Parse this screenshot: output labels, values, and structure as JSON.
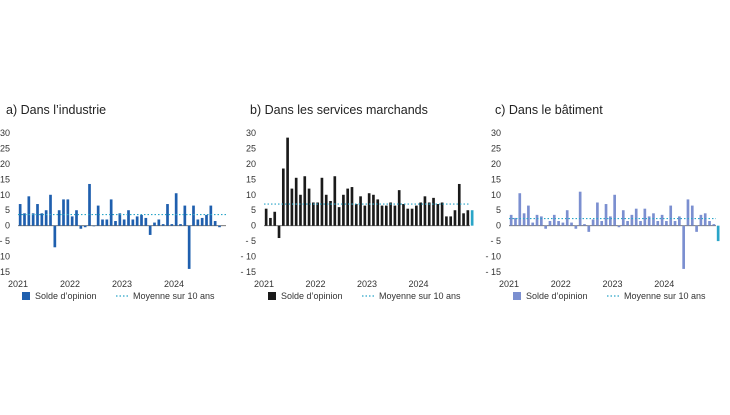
{
  "chart_data": [
    {
      "type": "bar",
      "title": "a)  Dans l’industrie",
      "color": "#1f5fae",
      "x_tick_labels": [
        "2021",
        "2022",
        "2023",
        "2024"
      ],
      "ylim": [
        -15,
        30
      ],
      "y_ticks": [
        "30",
        "25",
        "20",
        "15",
        "10",
        "5",
        "0",
        "- 5",
        "- 10",
        "- 15"
      ],
      "grid": false,
      "reference_line": {
        "name": "Moyenne sur 10 ans",
        "value": 3.6,
        "style": "dotted",
        "color": "#2aa5c8"
      },
      "legend": {
        "bar": "Solde d’opinion",
        "line": "Moyenne sur 10 ans",
        "placement": "bottom"
      },
      "x_start": "2021-01",
      "values": [
        7,
        4,
        9.5,
        4,
        7,
        4,
        5,
        10,
        -7,
        5,
        8.5,
        8.5,
        3,
        5,
        -1,
        -0.5,
        13.5,
        0,
        6.5,
        2,
        2,
        8.5,
        1.5,
        4,
        2,
        5,
        2,
        3,
        3.5,
        2.5,
        -3,
        1,
        2,
        0.5,
        7,
        0.5,
        10.5,
        0.5,
        6.5,
        -14,
        6.5,
        2,
        2.5,
        3.5,
        6.5,
        1.5,
        -0.5
      ]
    },
    {
      "type": "bar",
      "title": "b)  Dans les services marchands",
      "color": "#1a1a1a",
      "x_tick_labels": [
        "2021",
        "2022",
        "2023",
        "2024"
      ],
      "ylim": [
        -15,
        30
      ],
      "y_ticks": [
        "30",
        "25",
        "20",
        "15",
        "10",
        "5",
        "0",
        "- 5",
        "- 10",
        "- 15"
      ],
      "grid": false,
      "reference_line": {
        "name": "Moyenne sur 10 ans",
        "value": 7,
        "style": "dotted",
        "color": "#2aa5c8"
      },
      "legend": {
        "bar": "Solde d’opinion",
        "line": "Moyenne sur 10 ans",
        "placement": "bottom"
      },
      "x_start": "2021-01",
      "last_bar_color": "#2aa5c8",
      "values": [
        5.5,
        2.5,
        4.5,
        -4,
        18.5,
        28.5,
        12,
        15.5,
        10,
        16,
        12,
        7.5,
        7.5,
        15.5,
        10,
        8,
        16,
        6,
        10,
        12,
        12.5,
        7,
        9.5,
        6.5,
        10.5,
        10,
        8.5,
        6.5,
        6.5,
        7.5,
        6.5,
        11.5,
        7,
        5.5,
        5.5,
        6.5,
        7.5,
        9.5,
        7.5,
        9,
        7,
        7.5,
        3,
        3,
        5,
        13.5,
        4,
        5,
        5
      ]
    },
    {
      "type": "bar",
      "title": "c)  Dans le bâtiment",
      "color": "#7b8fd0",
      "x_tick_labels": [
        "2021",
        "2022",
        "2023",
        "2024"
      ],
      "ylim": [
        -15,
        30
      ],
      "y_ticks": [
        "30",
        "25",
        "20",
        "15",
        "10",
        "5",
        "0",
        "- 5",
        "- 10",
        "- 15"
      ],
      "grid": false,
      "reference_line": {
        "name": "Moyenne sur 10 ans",
        "value": 2.3,
        "style": "dotted",
        "color": "#2aa5c8"
      },
      "legend": {
        "bar": "Solde d’opinion",
        "line": "Moyenne sur 10 ans",
        "placement": "bottom"
      },
      "x_start": "2021-01",
      "last_bar_color": "#2aa5c8",
      "values": [
        3.5,
        2.5,
        10.5,
        4,
        6.5,
        1,
        3.5,
        3,
        -1,
        1.5,
        3.5,
        1.5,
        1,
        5,
        1,
        -1,
        11,
        0.5,
        -2,
        2,
        7.5,
        1.5,
        7,
        3,
        10,
        -0.5,
        5,
        1.5,
        3.5,
        5.5,
        1.5,
        5.5,
        3,
        4,
        1.5,
        3.5,
        1.5,
        6.5,
        1.5,
        3,
        -14,
        8.5,
        6.5,
        -2,
        3.5,
        4,
        1.5,
        0.5,
        -5
      ]
    }
  ]
}
